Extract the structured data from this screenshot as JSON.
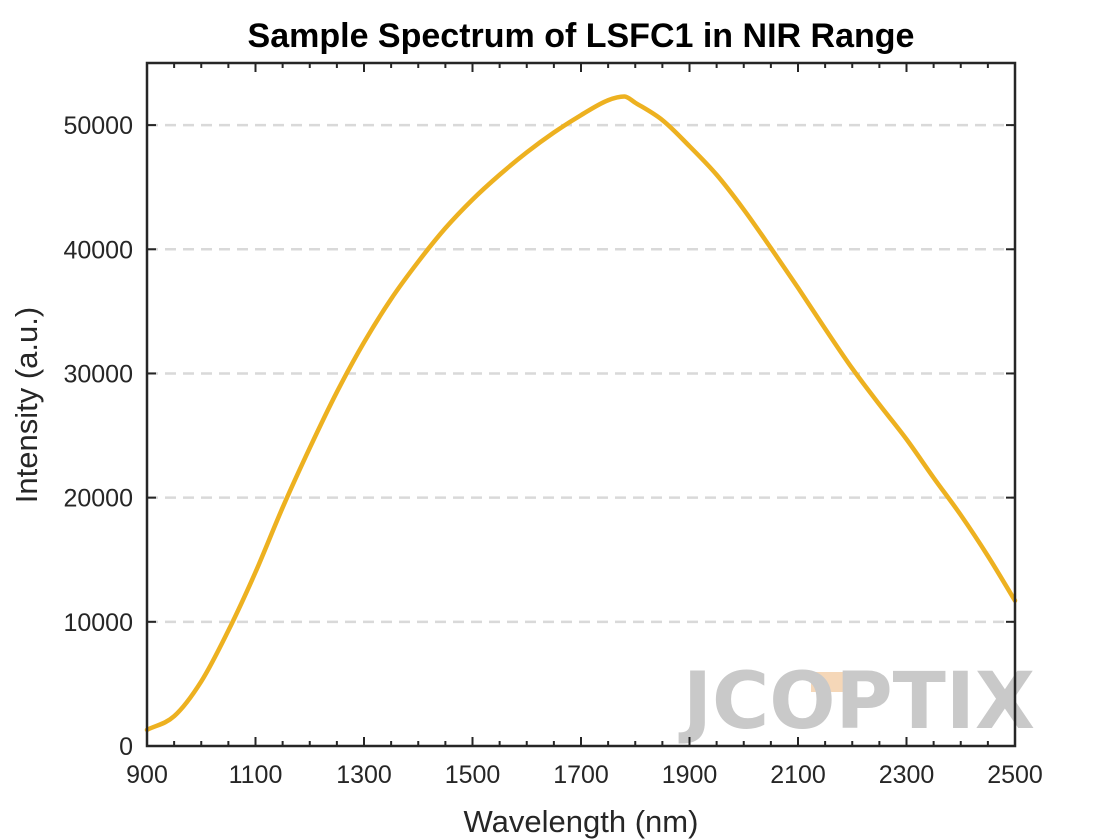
{
  "chart_data": {
    "type": "line",
    "title": "Sample Spectrum of LSFC1 in NIR Range",
    "xlabel": "Wavelength (nm)",
    "ylabel": "Intensity (a.u.)",
    "xlim": [
      900,
      2500
    ],
    "ylim": [
      0,
      55000
    ],
    "xticks": [
      "900",
      "1100",
      "1300",
      "1500",
      "1700",
      "1900",
      "2100",
      "2300",
      "2500"
    ],
    "yticks": [
      "0",
      "10000",
      "20000",
      "30000",
      "40000",
      "50000"
    ],
    "grid": "horizontal dashed",
    "line_color": "#EDB120",
    "series": [
      {
        "x": [
          900,
          950,
          1000,
          1050,
          1100,
          1150,
          1200,
          1250,
          1300,
          1350,
          1400,
          1450,
          1500,
          1550,
          1600,
          1650,
          1700,
          1750,
          1780,
          1800,
          1850,
          1900,
          1950,
          2000,
          2050,
          2100,
          2150,
          2200,
          2250,
          2300,
          2350,
          2400,
          2450,
          2500
        ],
        "y": [
          1300,
          2400,
          5200,
          9300,
          14000,
          19200,
          24000,
          28500,
          32500,
          36000,
          39000,
          41700,
          44000,
          46000,
          47800,
          49400,
          50800,
          52000,
          52300,
          51800,
          50400,
          48300,
          46000,
          43200,
          40100,
          36900,
          33600,
          30400,
          27500,
          24700,
          21600,
          18600,
          15300,
          11700
        ]
      }
    ]
  },
  "watermark": {
    "text": "JCOPTIX",
    "accent_color": "#F5D7B8",
    "gray_color": "#C9C9C9"
  }
}
